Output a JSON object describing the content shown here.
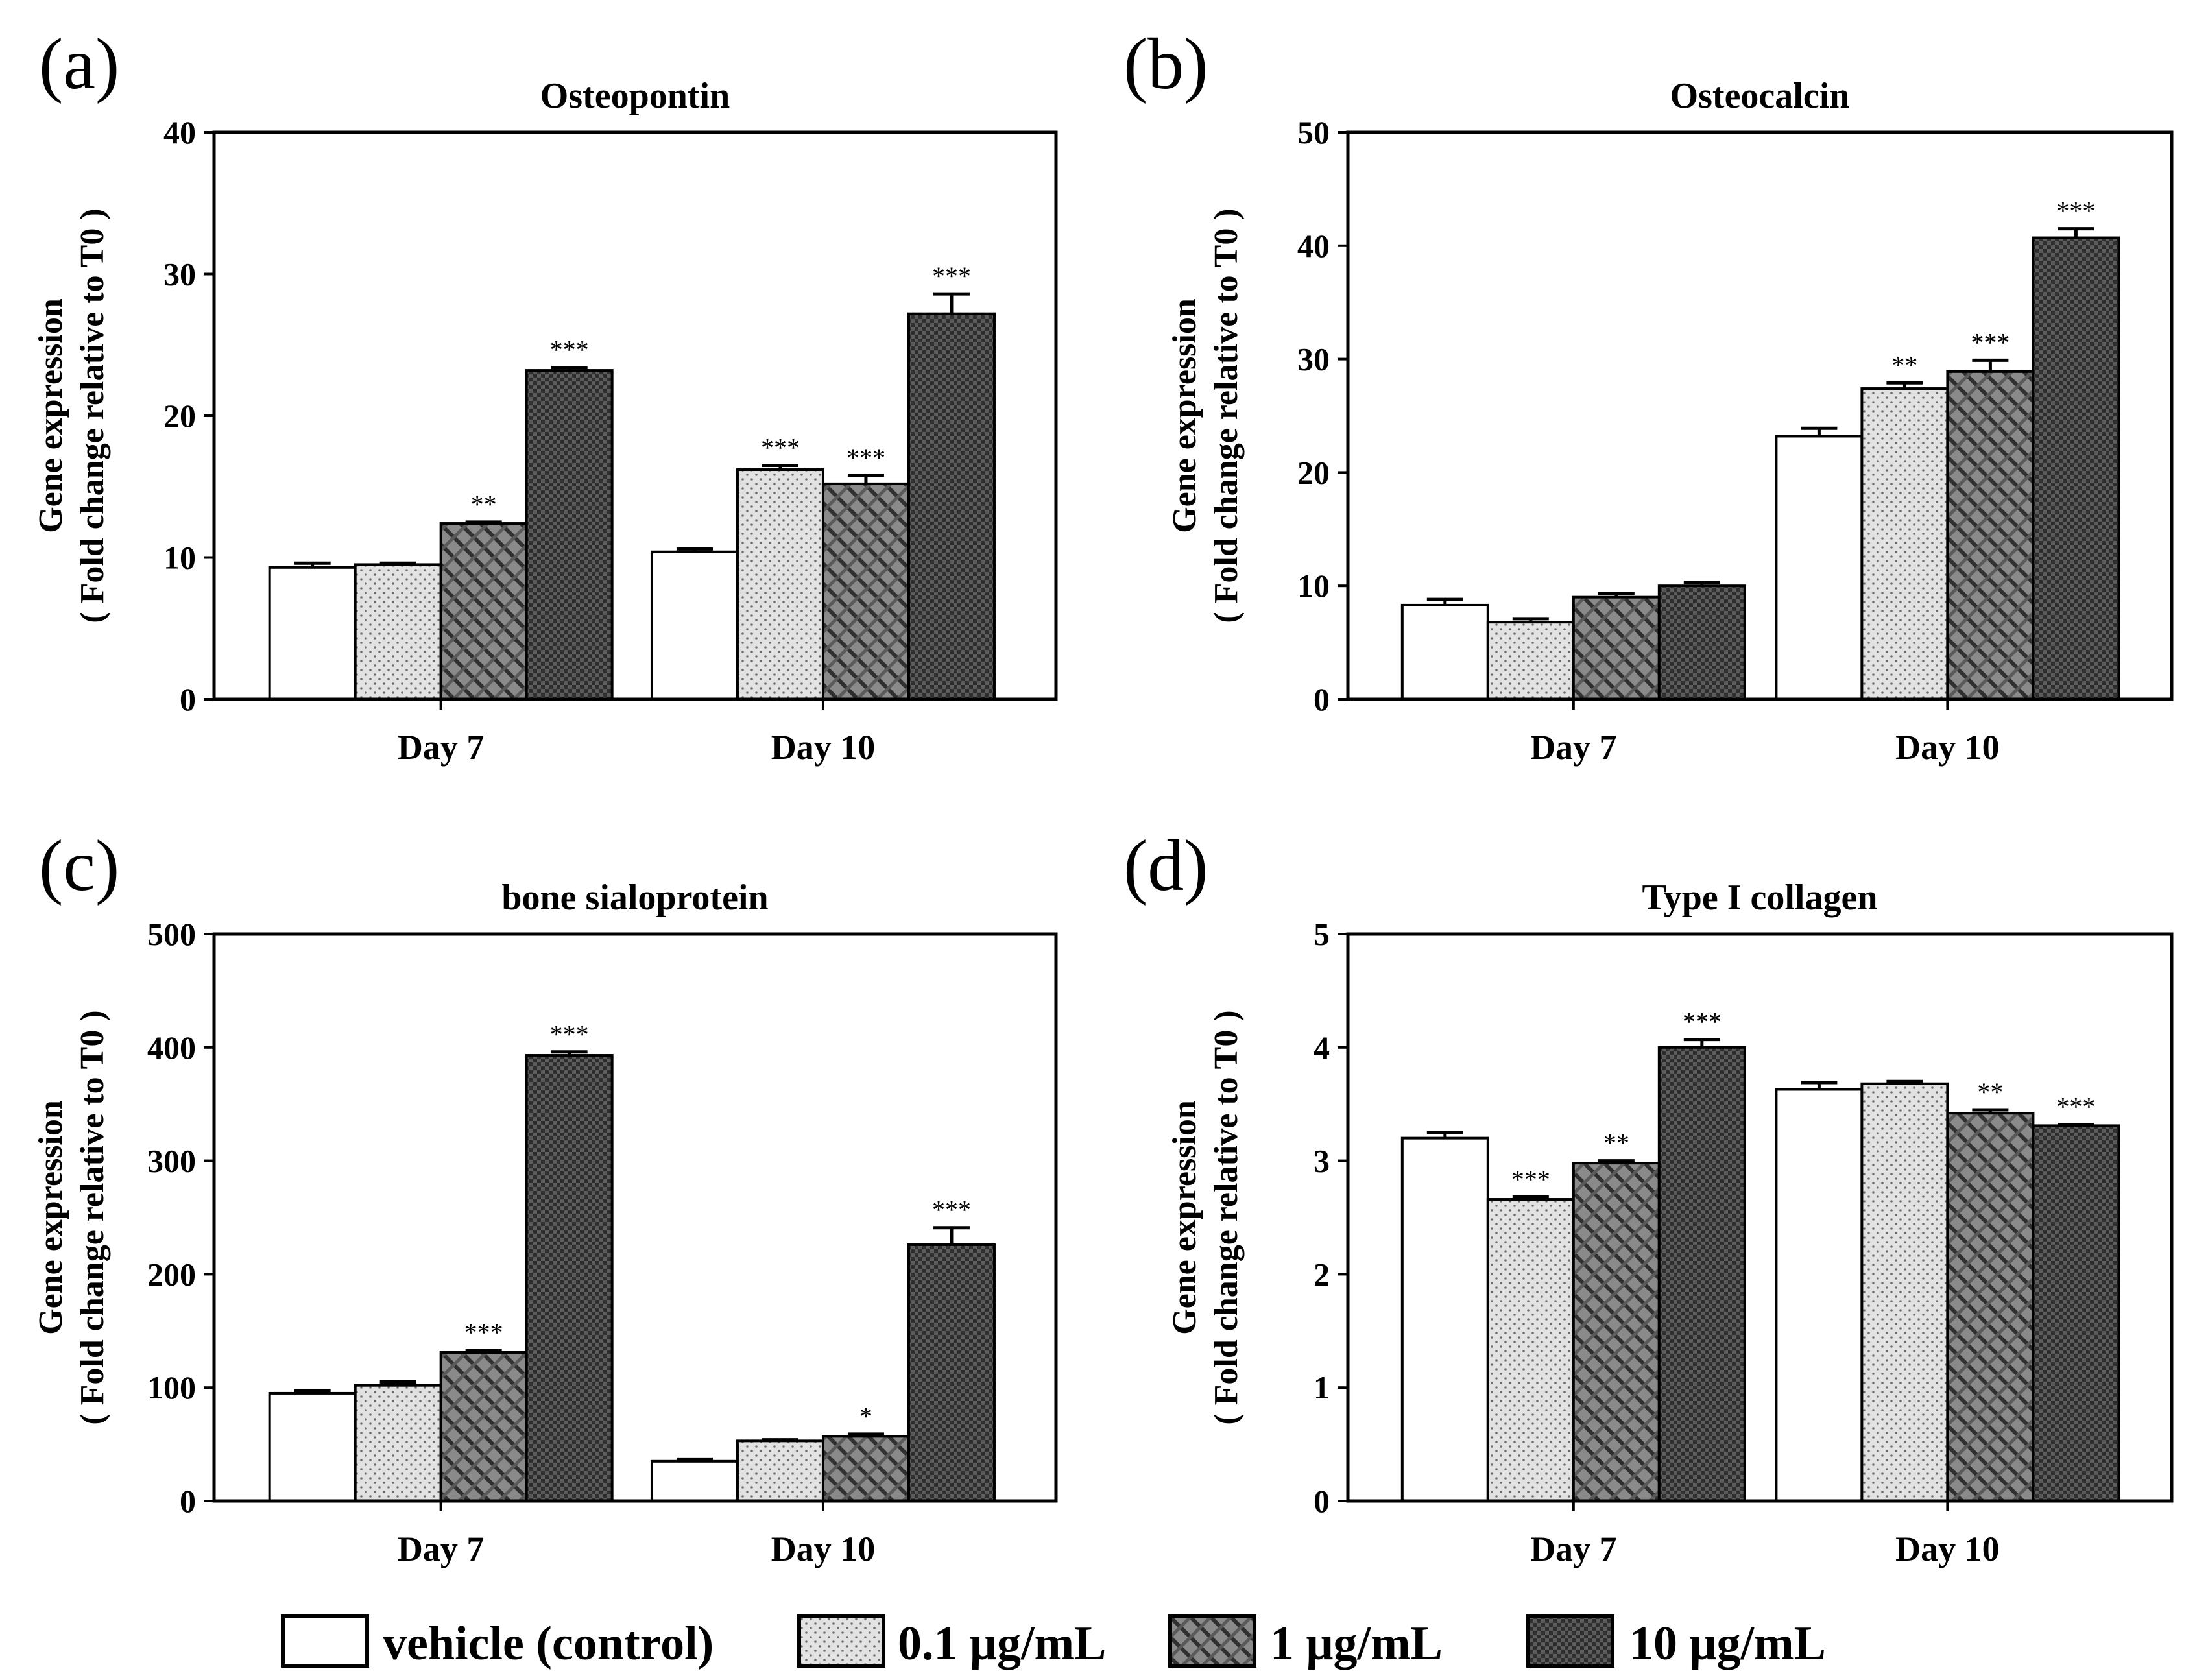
{
  "legend": [
    {
      "label": "vehicle (control)",
      "pattern": "white"
    },
    {
      "label": "0.1 μg/mL",
      "pattern": "dots"
    },
    {
      "label": "1 μg/mL",
      "pattern": "hatch"
    },
    {
      "label": "10 μg/mL",
      "pattern": "dark"
    }
  ],
  "chart_data": [
    {
      "panel": "(a)",
      "type": "bar",
      "title": "Osteopontin",
      "ylabel": [
        "Gene expression",
        "( Fold change relative to T0 )"
      ],
      "categories": [
        "Day 7",
        "Day 10"
      ],
      "ylim": [
        0,
        40
      ],
      "yticks": [
        0,
        10,
        20,
        30,
        40
      ],
      "series": [
        {
          "name": "vehicle (control)",
          "values": [
            9.3,
            10.4
          ],
          "errors": [
            0.3,
            0.2
          ],
          "sig": [
            "",
            ""
          ]
        },
        {
          "name": "0.1 μg/mL",
          "values": [
            9.5,
            16.2
          ],
          "errors": [
            0.1,
            0.3
          ],
          "sig": [
            "",
            "***"
          ]
        },
        {
          "name": "1 μg/mL",
          "values": [
            12.4,
            15.2
          ],
          "errors": [
            0.1,
            0.6
          ],
          "sig": [
            "**",
            "***"
          ]
        },
        {
          "name": "10 μg/mL",
          "values": [
            23.2,
            27.2
          ],
          "errors": [
            0.2,
            1.4
          ],
          "sig": [
            "***",
            "***"
          ]
        }
      ]
    },
    {
      "panel": "(b)",
      "type": "bar",
      "title": "Osteocalcin",
      "ylabel": [
        "Gene expression",
        "( Fold change relative to T0 )"
      ],
      "categories": [
        "Day 7",
        "Day 10"
      ],
      "ylim": [
        0,
        50
      ],
      "yticks": [
        0,
        10,
        20,
        30,
        40,
        50
      ],
      "series": [
        {
          "name": "vehicle (control)",
          "values": [
            8.3,
            23.2
          ],
          "errors": [
            0.5,
            0.7
          ],
          "sig": [
            "",
            ""
          ]
        },
        {
          "name": "0.1 μg/mL",
          "values": [
            6.8,
            27.4
          ],
          "errors": [
            0.3,
            0.5
          ],
          "sig": [
            "",
            "**"
          ]
        },
        {
          "name": "1 μg/mL",
          "values": [
            9.0,
            28.9
          ],
          "errors": [
            0.3,
            1.0
          ],
          "sig": [
            "",
            "***"
          ]
        },
        {
          "name": "10 μg/mL",
          "values": [
            10.0,
            40.7
          ],
          "errors": [
            0.3,
            0.8
          ],
          "sig": [
            "",
            "***"
          ]
        }
      ]
    },
    {
      "panel": "(c)",
      "type": "bar",
      "title": "bone sialoprotein",
      "ylabel": [
        "Gene expression",
        "( Fold change relative to T0 )"
      ],
      "categories": [
        "Day 7",
        "Day 10"
      ],
      "ylim": [
        0,
        500
      ],
      "yticks": [
        0,
        100,
        200,
        300,
        400,
        500
      ],
      "series": [
        {
          "name": "vehicle (control)",
          "values": [
            95,
            35
          ],
          "errors": [
            2,
            2
          ],
          "sig": [
            "",
            ""
          ]
        },
        {
          "name": "0.1 μg/mL",
          "values": [
            102,
            53
          ],
          "errors": [
            3,
            1
          ],
          "sig": [
            "",
            ""
          ]
        },
        {
          "name": "1 μg/mL",
          "values": [
            131,
            57
          ],
          "errors": [
            2,
            2
          ],
          "sig": [
            "***",
            "*"
          ]
        },
        {
          "name": "10 μg/mL",
          "values": [
            393,
            226
          ],
          "errors": [
            3,
            15
          ],
          "sig": [
            "***",
            "***"
          ]
        }
      ]
    },
    {
      "panel": "(d)",
      "type": "bar",
      "title": "Type I collagen",
      "ylabel": [
        "Gene expression",
        "( Fold change relative to T0 )"
      ],
      "categories": [
        "Day 7",
        "Day 10"
      ],
      "ylim": [
        0,
        5
      ],
      "yticks": [
        0,
        1,
        2,
        3,
        4,
        5
      ],
      "series": [
        {
          "name": "vehicle (control)",
          "values": [
            3.2,
            3.63
          ],
          "errors": [
            0.05,
            0.06
          ],
          "sig": [
            "",
            ""
          ]
        },
        {
          "name": "0.1 μg/mL",
          "values": [
            2.66,
            3.68
          ],
          "errors": [
            0.02,
            0.02
          ],
          "sig": [
            "***",
            ""
          ]
        },
        {
          "name": "1 μg/mL",
          "values": [
            2.98,
            3.42
          ],
          "errors": [
            0.02,
            0.03
          ],
          "sig": [
            "**",
            "**"
          ]
        },
        {
          "name": "10 μg/mL",
          "values": [
            4.0,
            3.31
          ],
          "errors": [
            0.07,
            0.01
          ],
          "sig": [
            "***",
            "***"
          ]
        }
      ]
    }
  ]
}
